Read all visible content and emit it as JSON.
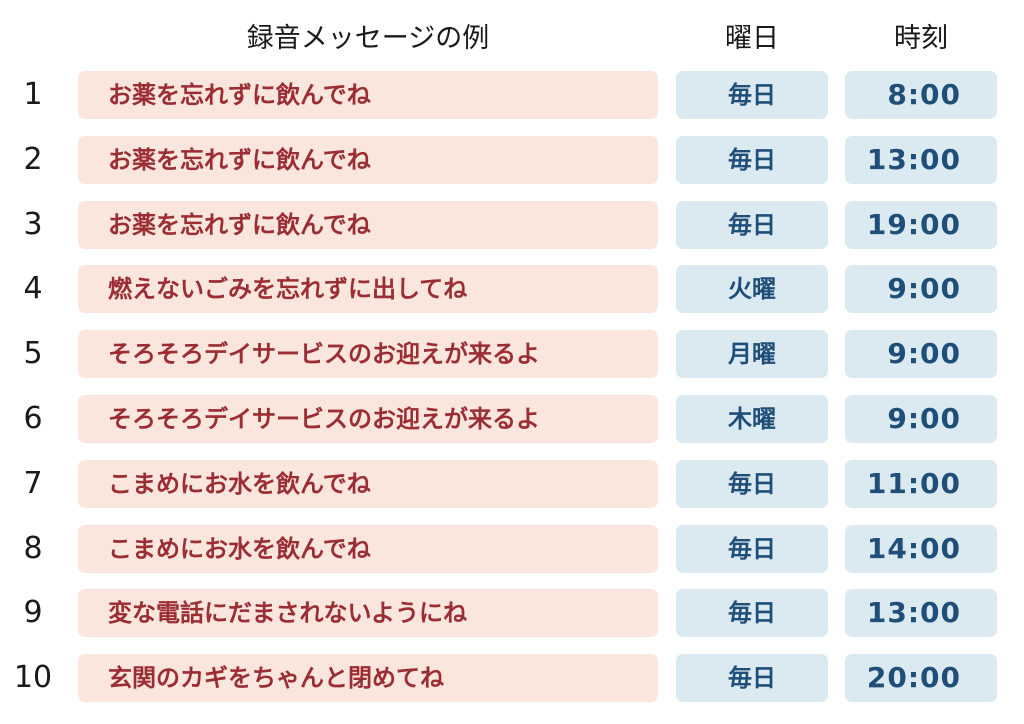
{
  "header": {
    "message": "録音メッセージの例",
    "day": "曜日",
    "time": "時刻"
  },
  "rows": [
    {
      "number": "1",
      "message": "お薬を忘れずに飲んでね",
      "day": "毎日",
      "time": "8:00"
    },
    {
      "number": "2",
      "message": "お薬を忘れずに飲んでね",
      "day": "毎日",
      "time": "13:00"
    },
    {
      "number": "3",
      "message": "お薬を忘れずに飲んでね",
      "day": "毎日",
      "time": "19:00"
    },
    {
      "number": "4",
      "message": "燃えないごみを忘れずに出してね",
      "day": "火曜",
      "time": "9:00"
    },
    {
      "number": "5",
      "message": "そろそろデイサービスのお迎えが来るよ",
      "day": "月曜",
      "time": "9:00"
    },
    {
      "number": "6",
      "message": "そろそろデイサービスのお迎えが来るよ",
      "day": "木曜",
      "time": "9:00"
    },
    {
      "number": "7",
      "message": "こまめにお水を飲んでね",
      "day": "毎日",
      "time": "11:00"
    },
    {
      "number": "8",
      "message": "こまめにお水を飲んでね",
      "day": "毎日",
      "time": "14:00"
    },
    {
      "number": "9",
      "message": "変な電話にだまされないようにね",
      "day": "毎日",
      "time": "13:00"
    },
    {
      "number": "10",
      "message": "玄関のカギをちゃんと閉めてね",
      "day": "毎日",
      "time": "20:00"
    }
  ],
  "colors": {
    "message_bg": "#fae6dc",
    "message_text": "#9b2d34",
    "schedule_bg": "#dbe9f1",
    "schedule_text": "#1f4f79"
  }
}
